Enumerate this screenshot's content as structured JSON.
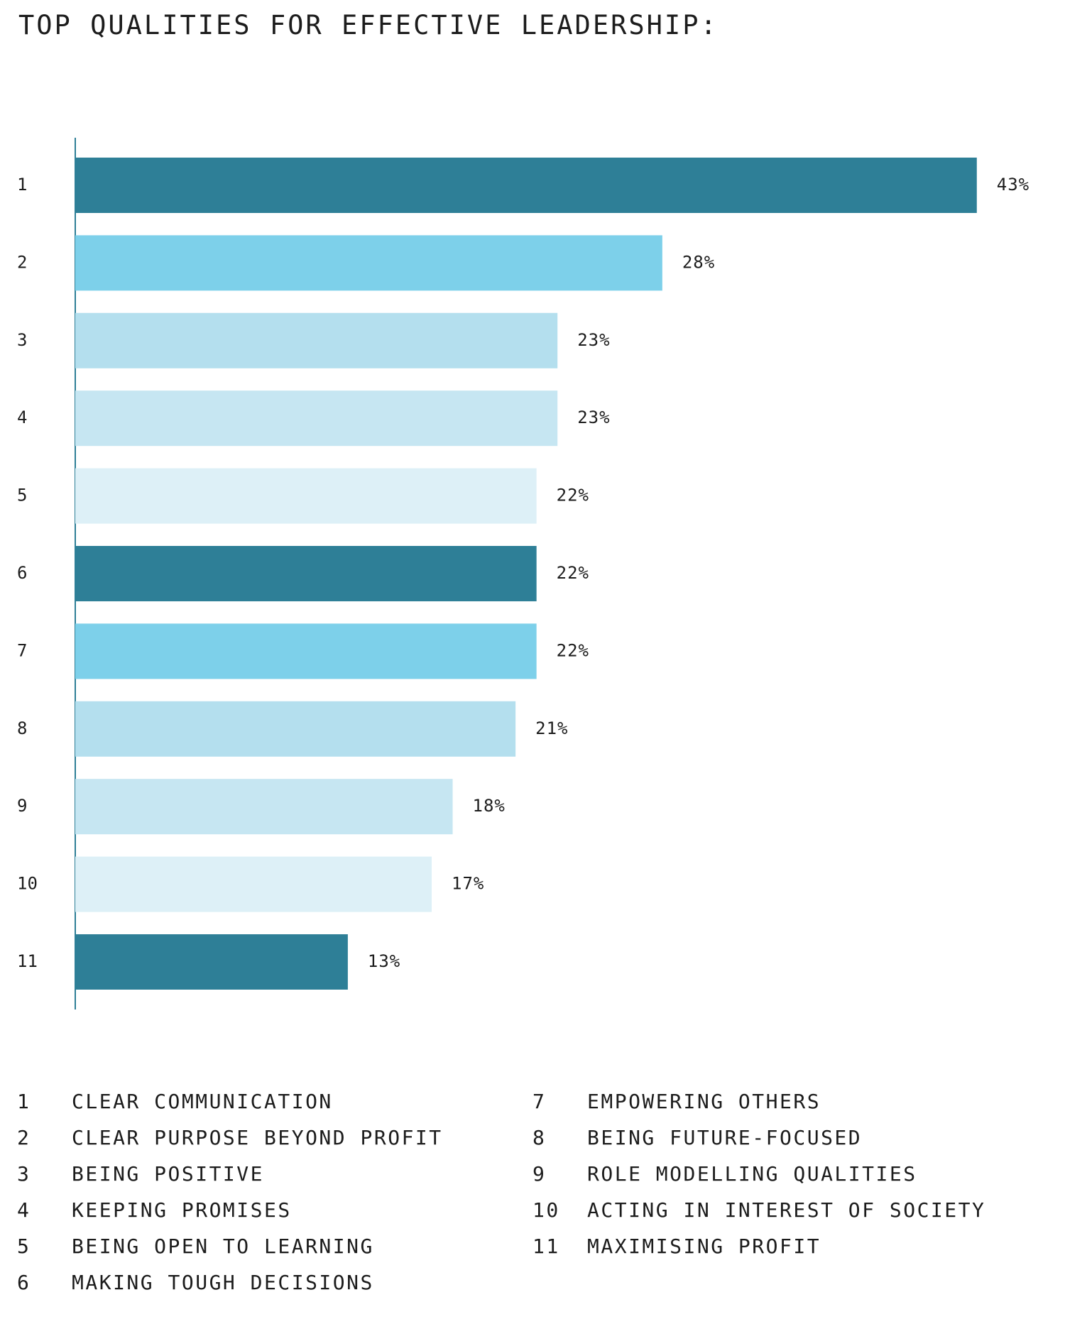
{
  "title": "TOP QUALITIES FOR EFFECTIVE LEADERSHIP:",
  "chart_data": {
    "type": "bar",
    "orientation": "horizontal",
    "title": "TOP QUALITIES FOR EFFECTIVE LEADERSHIP:",
    "categories": [
      "1",
      "2",
      "3",
      "4",
      "5",
      "6",
      "7",
      "8",
      "9",
      "10",
      "11"
    ],
    "values": [
      43,
      28,
      23,
      23,
      22,
      22,
      22,
      21,
      18,
      17,
      13
    ],
    "value_labels": [
      "43%",
      "28%",
      "23%",
      "23%",
      "22%",
      "22%",
      "22%",
      "21%",
      "18%",
      "17%",
      "13%"
    ],
    "unit": "%",
    "colors": [
      "#2e7f97",
      "#7dd0ea",
      "#b4dfee",
      "#c6e6f2",
      "#ddf0f7",
      "#2e7f97",
      "#7dd0ea",
      "#b4dfee",
      "#c6e6f2",
      "#ddf0f7",
      "#2e7f97"
    ],
    "axis_color": "#2e7f97",
    "grid": false,
    "legend_position": "bottom"
  },
  "legend": [
    {
      "num": "1",
      "label": "CLEAR COMMUNICATION"
    },
    {
      "num": "2",
      "label": "CLEAR PURPOSE BEYOND PROFIT"
    },
    {
      "num": "3",
      "label": "BEING POSITIVE"
    },
    {
      "num": "4",
      "label": "KEEPING PROMISES"
    },
    {
      "num": "5",
      "label": "BEING OPEN TO LEARNING"
    },
    {
      "num": "6",
      "label": "MAKING TOUGH DECISIONS"
    },
    {
      "num": "7",
      "label": "EMPOWERING OTHERS"
    },
    {
      "num": "8",
      "label": "BEING FUTURE-FOCUSED"
    },
    {
      "num": "9",
      "label": "ROLE MODELLING QUALITIES"
    },
    {
      "num": "10",
      "label": "ACTING IN INTEREST OF SOCIETY"
    },
    {
      "num": "11",
      "label": "MAXIMISING PROFIT"
    }
  ]
}
